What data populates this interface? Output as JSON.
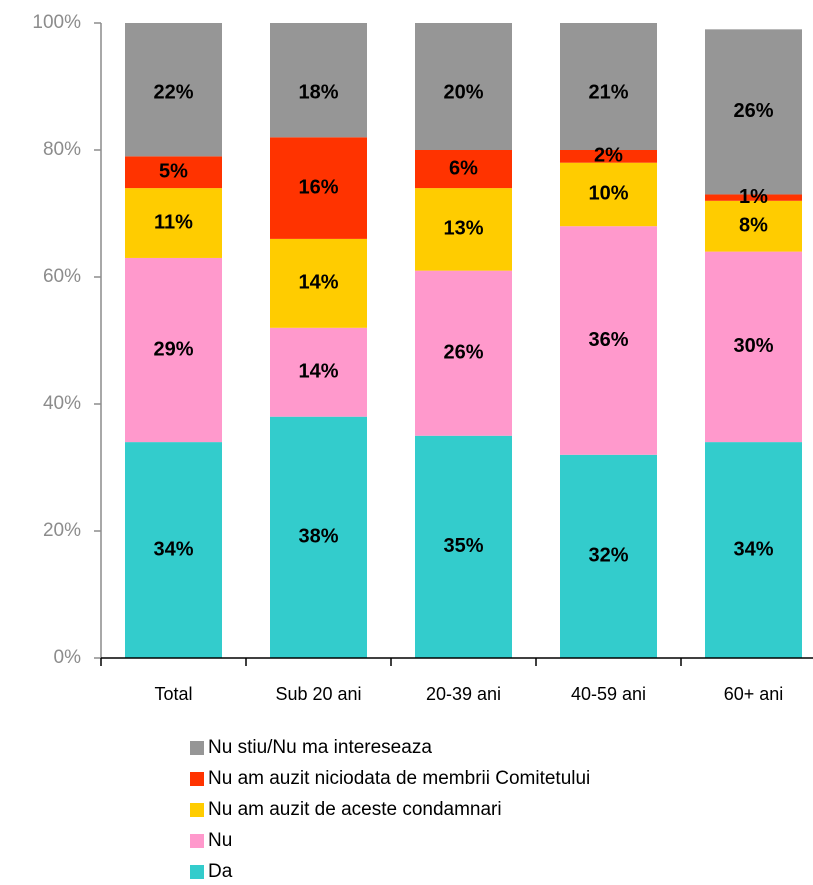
{
  "chart_data": {
    "type": "stacked_bar",
    "categories": [
      "Total",
      "Sub 20 ani",
      "20-39 ani",
      "40-59 ani",
      "60+ ani"
    ],
    "series": [
      {
        "name": "Da",
        "color": "#33cccc",
        "values": [
          34,
          38,
          35,
          32,
          34
        ],
        "value_labels": [
          "34%",
          "38%",
          "35%",
          "32%",
          "34%"
        ]
      },
      {
        "name": "Nu",
        "color": "#ff99cc",
        "values": [
          29,
          14,
          26,
          36,
          30
        ],
        "value_labels": [
          "29%",
          "14%",
          "26%",
          "36%",
          "30%"
        ]
      },
      {
        "name": "Nu am auzit de aceste condamnari",
        "color": "#ffcc00",
        "values": [
          11,
          14,
          13,
          10,
          8
        ],
        "value_labels": [
          "11%",
          "14%",
          "13%",
          "10%",
          "8%"
        ]
      },
      {
        "name": "Nu am auzit niciodata de membrii Comitetului",
        "color": "#ff3300",
        "values": [
          5,
          16,
          6,
          2,
          1
        ],
        "value_labels": [
          "5%",
          "16%",
          "6%",
          "2%",
          "1%"
        ]
      },
      {
        "name": "Nu stiu/Nu ma intereseaza",
        "color": "#969696",
        "values": [
          22,
          18,
          20,
          21,
          26
        ],
        "value_labels": [
          "22%",
          "18%",
          "20%",
          "21%",
          "26%"
        ]
      }
    ],
    "ylim": [
      0,
      100
    ],
    "yticks": [
      {
        "value": 0,
        "label": "0%"
      },
      {
        "value": 20,
        "label": "20%"
      },
      {
        "value": 40,
        "label": "40%"
      },
      {
        "value": 60,
        "label": "60%"
      },
      {
        "value": 80,
        "label": "80%"
      },
      {
        "value": 100,
        "label": "100%"
      }
    ]
  }
}
